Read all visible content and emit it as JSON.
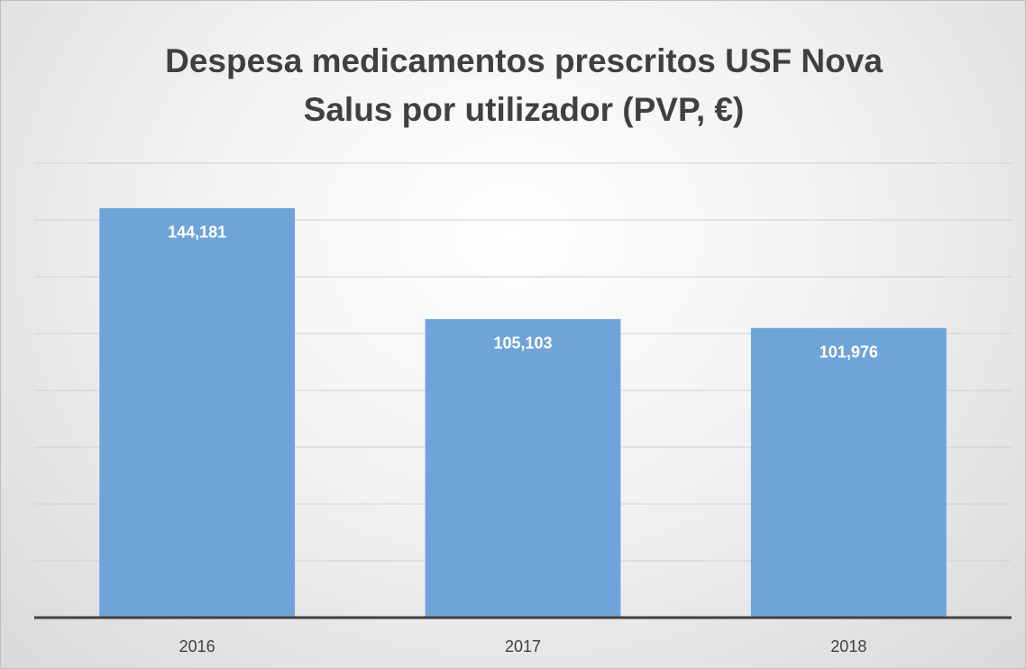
{
  "chart_data": {
    "type": "bar",
    "title": "Despesa medicamentos prescritos USF Nova Salus por utilizador (PVP, €)",
    "categories": [
      "2016",
      "2017",
      "2018"
    ],
    "values": [
      144.181,
      105.103,
      101.976
    ],
    "value_labels": [
      "144,181",
      "105,103",
      "101,976"
    ],
    "color": "#6fa4d8",
    "ylim": [
      0,
      160
    ],
    "yticks": [
      0,
      20,
      40,
      60,
      80,
      100,
      120,
      140,
      160
    ],
    "grid": true
  }
}
